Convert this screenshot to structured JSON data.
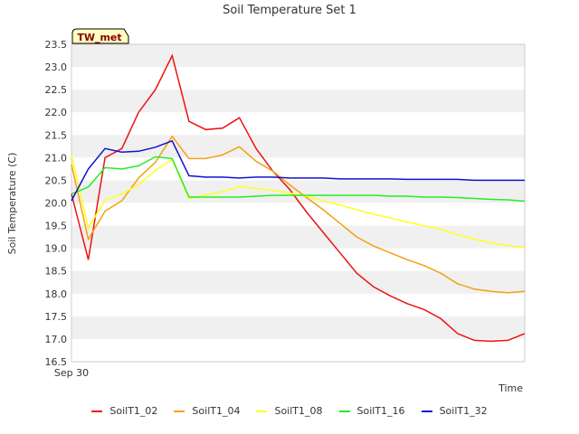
{
  "chart_data": {
    "type": "line",
    "title": "Soil Temperature Set 1",
    "xlabel": "Time",
    "ylabel": "Soil Temperature (C)",
    "ylim": [
      16.5,
      23.5
    ],
    "yticks": [
      "16.5",
      "17.0",
      "17.5",
      "18.0",
      "18.5",
      "19.0",
      "19.5",
      "20.0",
      "20.5",
      "21.0",
      "21.5",
      "22.0",
      "22.5",
      "23.0",
      "23.5"
    ],
    "xtick_label": "Sep 30",
    "badge": "TW_met",
    "grid": "horizontal bands",
    "legend_position": "bottom",
    "series": [
      {
        "name": "SoilT1_02",
        "color": "#ee1111",
        "x": [
          0,
          1,
          2,
          3,
          4,
          5,
          6,
          7,
          8,
          9,
          10,
          11,
          12,
          13,
          14,
          15,
          16,
          17,
          18,
          19,
          20,
          21,
          22,
          23,
          24,
          25,
          26,
          27
        ],
        "values": [
          20.2,
          18.75,
          21.0,
          21.2,
          22.0,
          22.5,
          23.25,
          21.8,
          21.62,
          21.65,
          21.88,
          21.2,
          20.7,
          20.3,
          19.8,
          19.35,
          18.9,
          18.45,
          18.15,
          17.95,
          17.78,
          17.65,
          17.45,
          17.12,
          16.97,
          16.95,
          16.97,
          17.12
        ]
      },
      {
        "name": "SoilT1_04",
        "color": "#f5a010",
        "x": [
          0,
          1,
          2,
          3,
          4,
          5,
          6,
          7,
          8,
          9,
          10,
          11,
          12,
          13,
          14,
          15,
          16,
          17,
          18,
          19,
          20,
          21,
          22,
          23,
          24,
          25,
          26,
          27
        ],
        "values": [
          20.85,
          19.2,
          19.82,
          20.05,
          20.55,
          20.9,
          21.47,
          20.98,
          20.98,
          21.06,
          21.24,
          20.92,
          20.7,
          20.4,
          20.12,
          19.85,
          19.55,
          19.25,
          19.05,
          18.9,
          18.75,
          18.62,
          18.45,
          18.22,
          18.1,
          18.05,
          18.02,
          18.05
        ]
      },
      {
        "name": "SoilT1_08",
        "color": "#ffff22",
        "x": [
          0,
          1,
          2,
          3,
          4,
          5,
          6,
          7,
          8,
          9,
          10,
          11,
          12,
          13,
          14,
          15,
          16,
          17,
          18,
          19,
          20,
          21,
          22,
          23,
          24,
          25,
          26,
          27
        ],
        "values": [
          21.05,
          19.45,
          20.06,
          20.2,
          20.4,
          20.72,
          20.96,
          20.1,
          20.18,
          20.25,
          20.36,
          20.32,
          20.28,
          20.22,
          20.15,
          20.05,
          19.95,
          19.85,
          19.75,
          19.67,
          19.58,
          19.5,
          19.42,
          19.3,
          19.2,
          19.12,
          19.06,
          19.02
        ]
      },
      {
        "name": "SoilT1_16",
        "color": "#22ee22",
        "x": [
          0,
          1,
          2,
          3,
          4,
          5,
          6,
          7,
          8,
          9,
          10,
          11,
          12,
          13,
          14,
          15,
          16,
          17,
          18,
          19,
          20,
          21,
          22,
          23,
          24,
          25,
          26,
          27
        ],
        "values": [
          20.2,
          20.35,
          20.78,
          20.75,
          20.82,
          21.02,
          20.98,
          20.13,
          20.13,
          20.13,
          20.13,
          20.15,
          20.17,
          20.17,
          20.17,
          20.17,
          20.17,
          20.17,
          20.17,
          20.15,
          20.15,
          20.13,
          20.13,
          20.12,
          20.1,
          20.08,
          20.07,
          20.04
        ]
      },
      {
        "name": "SoilT1_32",
        "color": "#1111cc",
        "x": [
          0,
          1,
          2,
          3,
          4,
          5,
          6,
          7,
          8,
          9,
          10,
          11,
          12,
          13,
          14,
          15,
          16,
          17,
          18,
          19,
          20,
          21,
          22,
          23,
          24,
          25,
          26,
          27
        ],
        "values": [
          20.05,
          20.75,
          21.2,
          21.12,
          21.14,
          21.23,
          21.37,
          20.6,
          20.57,
          20.57,
          20.55,
          20.57,
          20.57,
          20.55,
          20.55,
          20.55,
          20.53,
          20.53,
          20.53,
          20.53,
          20.52,
          20.52,
          20.52,
          20.52,
          20.5,
          20.5,
          20.5,
          20.5
        ]
      }
    ]
  }
}
